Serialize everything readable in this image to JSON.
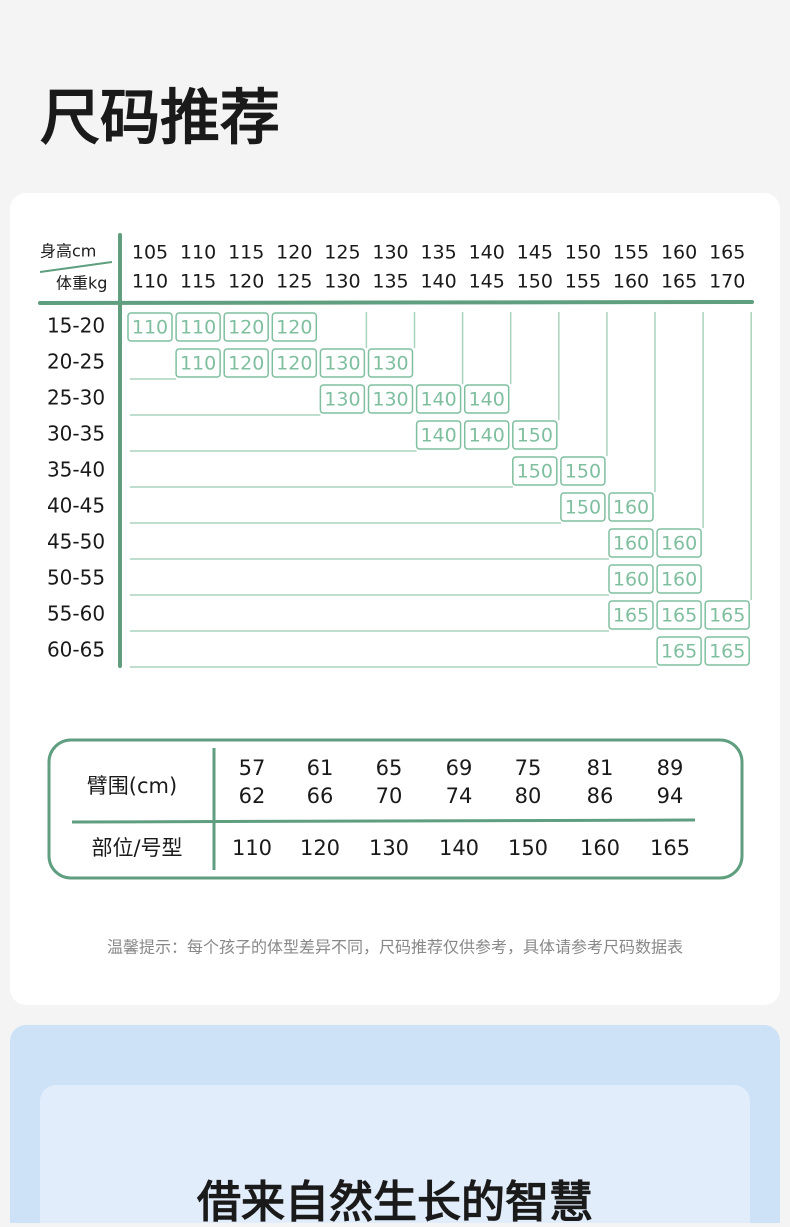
{
  "header": {
    "title": "尺码推荐"
  },
  "size_table": {
    "height_label": "身高cm",
    "weight_label": "体重kg",
    "columns": [
      {
        "top": "105",
        "bottom": "110"
      },
      {
        "top": "110",
        "bottom": "115"
      },
      {
        "top": "115",
        "bottom": "120"
      },
      {
        "top": "120",
        "bottom": "125"
      },
      {
        "top": "125",
        "bottom": "130"
      },
      {
        "top": "130",
        "bottom": "135"
      },
      {
        "top": "135",
        "bottom": "140"
      },
      {
        "top": "140",
        "bottom": "145"
      },
      {
        "top": "145",
        "bottom": "150"
      },
      {
        "top": "150",
        "bottom": "155"
      },
      {
        "top": "155",
        "bottom": "160"
      },
      {
        "top": "160",
        "bottom": "165"
      },
      {
        "top": "165",
        "bottom": "170"
      }
    ],
    "rows": [
      {
        "label": "15-20",
        "cells": [
          "110",
          "110",
          "120",
          "120",
          null,
          null,
          null,
          null,
          null,
          null,
          null,
          null,
          null
        ]
      },
      {
        "label": "20-25",
        "cells": [
          null,
          "110",
          "120",
          "120",
          "130",
          "130",
          null,
          null,
          null,
          null,
          null,
          null,
          null
        ]
      },
      {
        "label": "25-30",
        "cells": [
          null,
          null,
          null,
          null,
          "130",
          "130",
          "140",
          "140",
          null,
          null,
          null,
          null,
          null
        ]
      },
      {
        "label": "30-35",
        "cells": [
          null,
          null,
          null,
          null,
          null,
          null,
          "140",
          "140",
          "150",
          null,
          null,
          null,
          null
        ]
      },
      {
        "label": "35-40",
        "cells": [
          null,
          null,
          null,
          null,
          null,
          null,
          null,
          null,
          "150",
          "150",
          null,
          null,
          null
        ]
      },
      {
        "label": "40-45",
        "cells": [
          null,
          null,
          null,
          null,
          null,
          null,
          null,
          null,
          null,
          "150",
          "160",
          null,
          null
        ]
      },
      {
        "label": "45-50",
        "cells": [
          null,
          null,
          null,
          null,
          null,
          null,
          null,
          null,
          null,
          null,
          "160",
          "160",
          null
        ]
      },
      {
        "label": "50-55",
        "cells": [
          null,
          null,
          null,
          null,
          null,
          null,
          null,
          null,
          null,
          null,
          "160",
          "160",
          null
        ]
      },
      {
        "label": "55-60",
        "cells": [
          null,
          null,
          null,
          null,
          null,
          null,
          null,
          null,
          null,
          null,
          "165",
          "165",
          "165"
        ]
      },
      {
        "label": "60-65",
        "cells": [
          null,
          null,
          null,
          null,
          null,
          null,
          null,
          null,
          null,
          null,
          null,
          "165",
          "165"
        ]
      }
    ]
  },
  "arm_table": {
    "arm_label": "臂围(cm)",
    "size_label": "部位/号型",
    "columns": [
      {
        "top": "57",
        "bottom": "62",
        "size": "110"
      },
      {
        "top": "61",
        "bottom": "66",
        "size": "120"
      },
      {
        "top": "65",
        "bottom": "70",
        "size": "130"
      },
      {
        "top": "69",
        "bottom": "74",
        "size": "140"
      },
      {
        "top": "75",
        "bottom": "80",
        "size": "150"
      },
      {
        "top": "81",
        "bottom": "86",
        "size": "160"
      },
      {
        "top": "89",
        "bottom": "94",
        "size": "165"
      }
    ]
  },
  "note": "温馨提示：每个孩子的体型差异不同，尺码推荐仅供参考，具体请参考尺码数据表",
  "next_section": {
    "title": "借来自然生长的智慧"
  }
}
